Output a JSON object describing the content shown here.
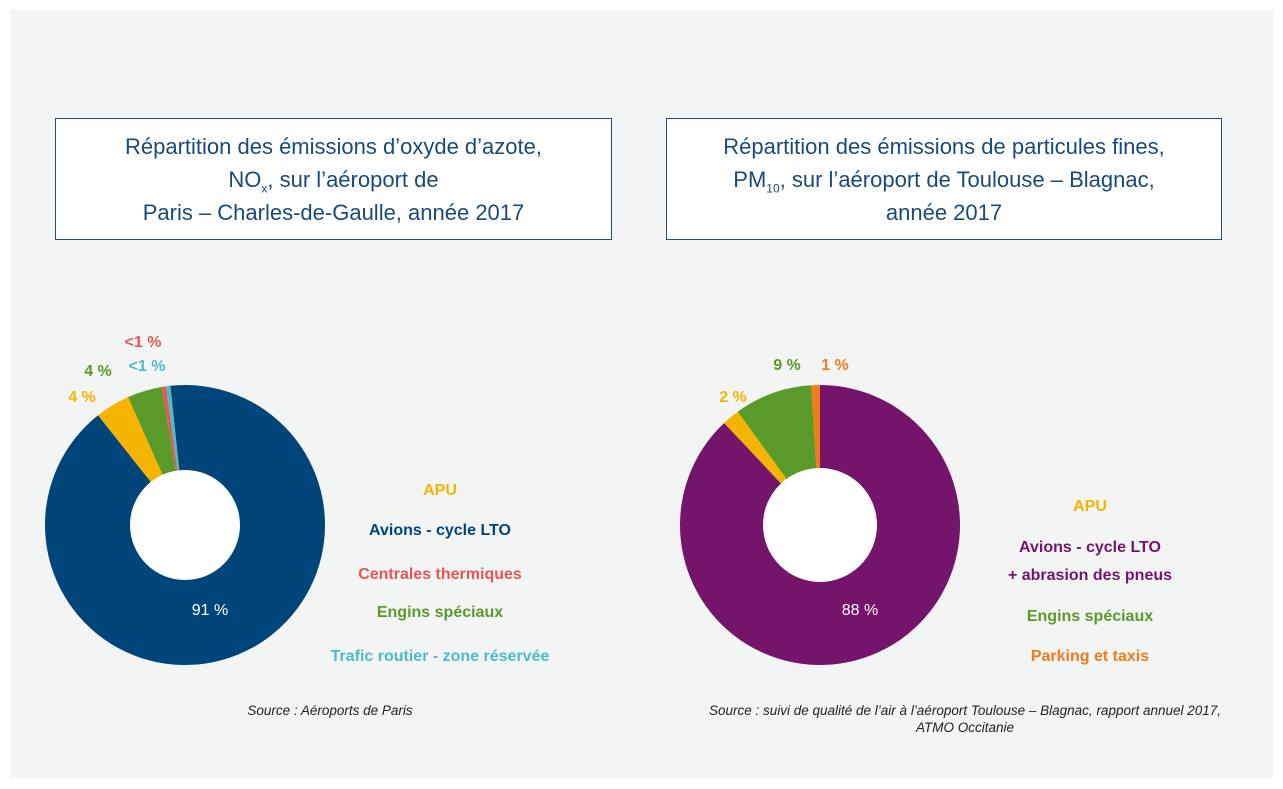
{
  "chart_data": [
    {
      "type": "donut",
      "title": [
        "Répartition des émissions d’oxyde d’azote,",
        "NO",
        "x",
        ", sur l’aéroport de",
        "Paris – Charles-de-Gaulle, année 2017"
      ],
      "categories": [
        "APU",
        "Avions - cycle LTO",
        "Centrales thermiques",
        "Engins spéciaux",
        "Trafic routier - zone réservée"
      ],
      "values": [
        4,
        91,
        0.5,
        4,
        0.5
      ],
      "value_labels": [
        "4 %",
        "91 %",
        "<1 %",
        "4 %",
        "<1 %"
      ],
      "colors": [
        "#f5b400",
        "#00457a",
        "#e85555",
        "#5a9a2a",
        "#4dbdc4"
      ],
      "source": "Source : Aéroports de Paris"
    },
    {
      "type": "donut",
      "title": [
        "Répartition des émissions de particules fines,",
        "PM",
        "10",
        ", sur l’aéroport de Toulouse – Blagnac,",
        "année 2017"
      ],
      "categories": [
        "APU",
        "Avions - cycle LTO\n+ abrasion des pneus",
        "Engins spéciaux",
        "Parking et taxis"
      ],
      "values": [
        2,
        88,
        9,
        1
      ],
      "value_labels": [
        "2 %",
        "88 %",
        "9 %",
        "1 %"
      ],
      "colors": [
        "#f5b400",
        "#74156b",
        "#5a9a2a",
        "#ee7d1a"
      ],
      "source": "Source : suivi de qualité de l’air à l’aéroport Toulouse – Blagnac, rapport annuel 2017, ATMO Occitanie"
    }
  ]
}
